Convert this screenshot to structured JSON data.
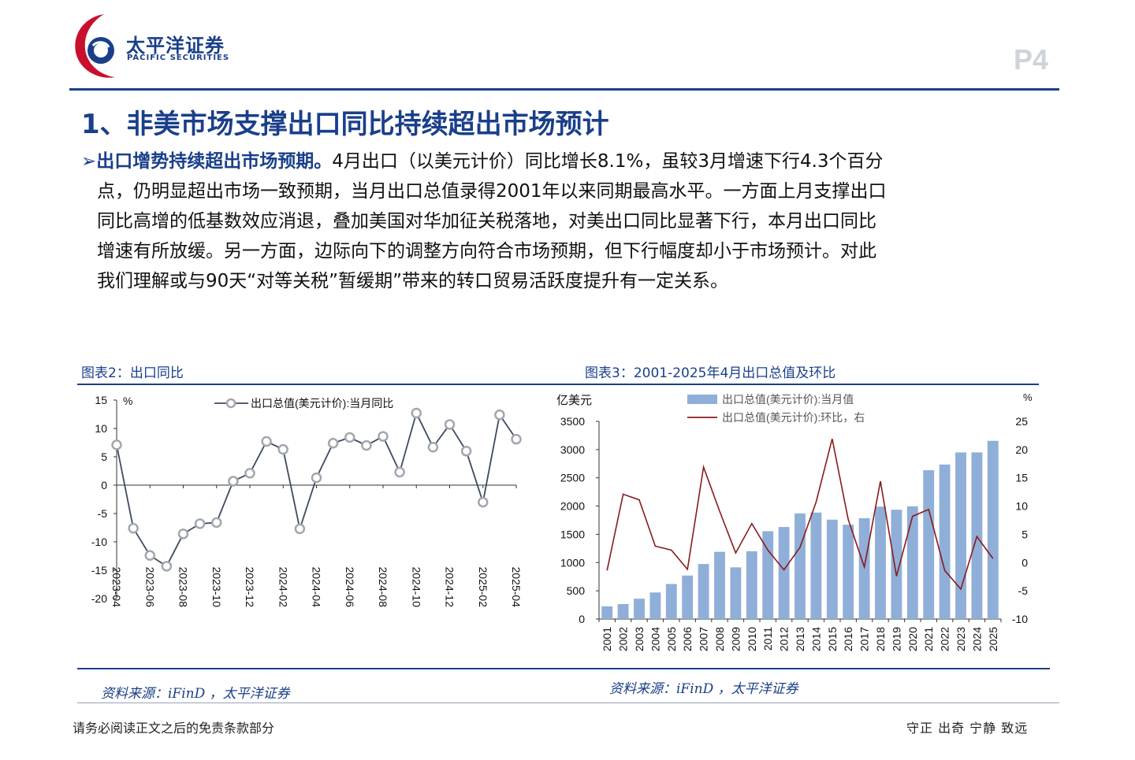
{
  "header": {
    "brand_cn": "太平洋证券",
    "brand_en": "PACIFIC SECURITIES",
    "page_label": "P4",
    "brand_color": "#1a3f8a",
    "accent_red": "#c8102e"
  },
  "section": {
    "title": "1、非美市场支撑出口同比持续超出市场预计"
  },
  "paragraph": {
    "bullet": "➢",
    "lead": "出口增势持续超出市场预期。",
    "lines": [
      "4月出口（以美元计价）同比增长8.1%，虽较3月增速下行4.3个百分",
      "点，仍明显超出市场一致预期，当月出口总值录得2001年以来同期最高水平。一方面上月支撑出口",
      "同比高增的低基数效应消退，叠加美国对华加征关税落地，对美出口同比显著下行，本月出口同比",
      "增速有所放缓。另一方面，边际向下的调整方向符合市场预期，但下行幅度却小于市场预计。对此",
      "我们理解或与90天“对等关税”暂缓期”带来的转口贸易活跃度提升有一定关系。"
    ]
  },
  "figures": {
    "fig2_title": "图表2：出口同比",
    "fig3_title": "图表3：2001-2025年4月出口总值及环比",
    "source_left": "资料来源：iFinD ，太平洋证券",
    "source_right": "资料来源：iFinD ，太平洋证券"
  },
  "chart_data": [
    {
      "type": "line",
      "ylabel": "%",
      "ylim": [
        -20,
        15
      ],
      "yticks": [
        15,
        10,
        5,
        0,
        -5,
        -10,
        -15,
        -20
      ],
      "x": [
        "2023-04",
        "2023-05",
        "2023-06",
        "2023-07",
        "2023-08",
        "2023-09",
        "2023-10",
        "2023-11",
        "2023-12",
        "2024-01",
        "2024-02",
        "2024-03",
        "2024-04",
        "2024-05",
        "2024-06",
        "2024-07",
        "2024-08",
        "2024-09",
        "2024-10",
        "2024-11",
        "2024-12",
        "2025-01",
        "2025-02",
        "2025-03",
        "2025-04"
      ],
      "x_tick_labels": [
        "2023-04",
        "2023-06",
        "2023-08",
        "2023-10",
        "2023-12",
        "2024-02",
        "2024-04",
        "2024-06",
        "2024-08",
        "2024-10",
        "2024-12",
        "2025-02",
        "2025-04"
      ],
      "series": [
        {
          "name": "出口总值(美元计价):当月同比",
          "color": "#3d4a63",
          "values": [
            7.1,
            -7.6,
            -12.4,
            -14.3,
            -8.6,
            -6.8,
            -6.6,
            0.7,
            2.1,
            7.7,
            6.3,
            -7.7,
            1.3,
            7.4,
            8.4,
            7.0,
            8.6,
            2.3,
            12.7,
            6.7,
            10.7,
            6.0,
            -3.0,
            12.4,
            8.1
          ]
        }
      ],
      "legend": "top"
    },
    {
      "type": "bar",
      "ylabel": "亿美元",
      "y2label": "%",
      "ylim": [
        0,
        3500
      ],
      "y2lim": [
        -10,
        25
      ],
      "yticks": [
        0,
        500,
        1000,
        1500,
        2000,
        2500,
        3000,
        3500
      ],
      "y2ticks": [
        25,
        20,
        15,
        10,
        5,
        0,
        -5,
        -10
      ],
      "categories": [
        "2001",
        "2002",
        "2003",
        "2004",
        "2005",
        "2006",
        "2007",
        "2008",
        "2009",
        "2010",
        "2011",
        "2012",
        "2013",
        "2014",
        "2015",
        "2016",
        "2017",
        "2018",
        "2019",
        "2020",
        "2021",
        "2022",
        "2023",
        "2024",
        "2025"
      ],
      "series": [
        {
          "name": "出口总值(美元计价):当月值",
          "color": "#8fafd8",
          "values": [
            225,
            265,
            360,
            470,
            620,
            770,
            975,
            1190,
            915,
            1200,
            1555,
            1630,
            1870,
            1885,
            1760,
            1670,
            1785,
            1990,
            1935,
            1995,
            2635,
            2735,
            2950,
            2950,
            3155
          ]
        },
        {
          "name": "出口总值(美元计价):环比，右",
          "color": "#8b1a1a",
          "axis": "right",
          "values": [
            -1.4,
            12.1,
            11.1,
            2.9,
            2.2,
            -1.2,
            16.9,
            9.1,
            1.7,
            6.9,
            2.2,
            -1.3,
            2.7,
            10.7,
            21.9,
            7.6,
            -0.8,
            14.4,
            -2.4,
            8.2,
            9.4,
            -1.4,
            -4.7,
            4.6,
            0.7
          ]
        }
      ],
      "legend": "top"
    }
  ],
  "footer": {
    "disclaimer": "请务必阅读正文之后的免责条款部分",
    "slogan": "守正 出奇 宁静 致远"
  }
}
